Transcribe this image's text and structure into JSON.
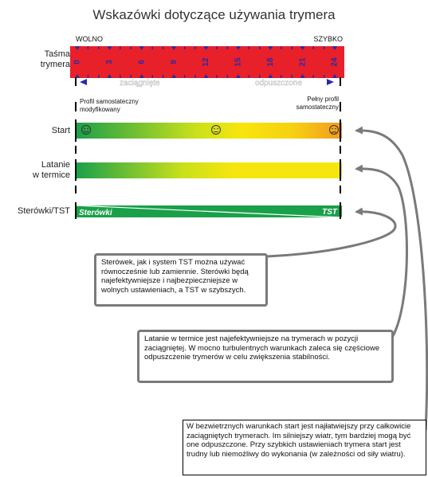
{
  "title": "Wskazówki dotyczące używania trymera",
  "speed": {
    "slow": "WOLNO",
    "fast": "SZYBKO"
  },
  "trimmer_label": [
    "Taśma",
    "trymera"
  ],
  "scale": [
    "0",
    "3",
    "6",
    "9",
    "12",
    "15",
    "18",
    "21",
    "24"
  ],
  "arrows": {
    "left": "zaciągnięte",
    "right": "odpuszczone"
  },
  "profiles": {
    "left": [
      "Profil samostateczny",
      "modyfikowany"
    ],
    "right": [
      "Pełny profil",
      "samostateczny"
    ]
  },
  "rows": {
    "start": "Start",
    "thermal": [
      "Latanie",
      "w termice"
    ],
    "brakes": "Sterówki/TST"
  },
  "bar_labels": {
    "brakes": "Sterówki",
    "tst": "TST"
  },
  "notes": [
    "Sterówek, jak i system TST można używać równocześnie lub zamiennie. Sterówki będą najefektywniejsze i najbezpieczniejsze w wolnych ustawieniach, a TST w szybszych.",
    "Latanie w termice jest najefektywniejsze na trymerach w pozycji zaciągniętej. W mocno turbulentnych warunkach zaleca się częściowe odpuszczenie trymerów w celu zwiększenia stabilności.",
    "W bezwietrznych warunkach start jest najłatwiejszy przy całkowicie zaciągniętych trymerach. Im silniejszy wiatr, tym bardziej mogą być one odpuszczone. Przy szybkich ustawieniach trymera start jest trudny lub niemożliwy do wykonania (w zależności od siły wiatru)."
  ],
  "colors": {
    "tape_red": "#e8202a",
    "tape_blue": "#2a2aa8",
    "green": "#1aa04a",
    "yellow": "#f7e60e",
    "orange": "#f39a1f",
    "grey": "#7a7a7a"
  },
  "icons": [
    "smile-icon",
    "neutral-face-icon",
    "frown-icon"
  ]
}
